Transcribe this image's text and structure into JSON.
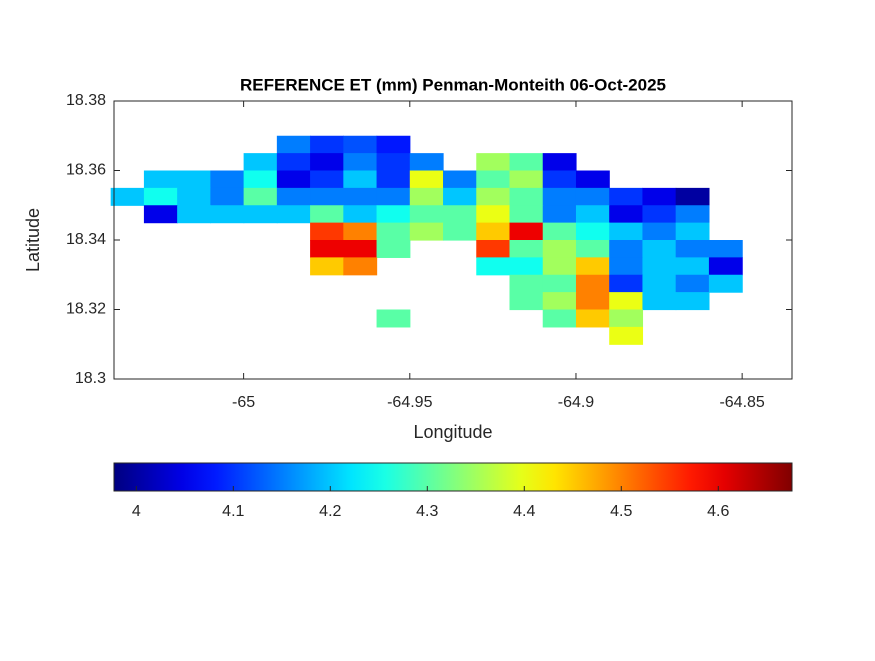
{
  "chart_data": {
    "type": "heatmap",
    "title": "REFERENCE ET (mm) Penman-Monteith 06-Oct-2025",
    "x_label": "Longitude",
    "y_label": "Latitude",
    "x": [
      -65.035,
      -65.025,
      -65.015,
      -65.005,
      -64.995,
      -64.985,
      -64.975,
      -64.965,
      -64.955,
      -64.945,
      -64.935,
      -64.925,
      -64.915,
      -64.905,
      -64.895,
      -64.885,
      -64.875,
      -64.865,
      -64.855,
      -64.845
    ],
    "y": [
      18.3675,
      18.3625,
      18.3575,
      18.3525,
      18.3475,
      18.3425,
      18.3375,
      18.3325,
      18.3275,
      18.3225,
      18.3175,
      18.3125
    ],
    "z": [
      [
        null,
        null,
        null,
        null,
        null,
        4.15,
        4.1,
        4.12,
        4.08,
        null,
        null,
        null,
        null,
        null,
        null,
        null,
        null,
        null,
        null,
        null
      ],
      [
        null,
        null,
        null,
        null,
        4.2,
        4.1,
        4.05,
        4.15,
        4.1,
        4.15,
        null,
        4.35,
        4.3,
        4.05,
        null,
        null,
        null,
        null,
        null,
        null
      ],
      [
        null,
        4.2,
        4.2,
        4.15,
        4.25,
        4.05,
        4.1,
        4.2,
        4.1,
        4.4,
        4.15,
        4.3,
        4.35,
        4.1,
        4.05,
        null,
        null,
        null,
        null,
        null
      ],
      [
        4.2,
        4.25,
        4.2,
        4.15,
        4.3,
        4.15,
        4.15,
        4.15,
        4.15,
        4.35,
        4.2,
        4.35,
        4.3,
        4.15,
        4.15,
        4.1,
        4.05,
        4.0,
        null,
        null
      ],
      [
        null,
        4.05,
        4.2,
        4.2,
        4.2,
        4.2,
        4.3,
        4.2,
        4.25,
        4.3,
        4.3,
        4.4,
        4.3,
        4.15,
        4.2,
        4.05,
        4.1,
        4.15,
        null,
        null
      ],
      [
        null,
        null,
        null,
        null,
        null,
        null,
        4.55,
        4.5,
        4.3,
        4.35,
        4.3,
        4.45,
        4.6,
        4.3,
        4.25,
        4.2,
        4.15,
        4.2,
        null,
        null
      ],
      [
        null,
        null,
        null,
        null,
        null,
        null,
        4.6,
        4.6,
        4.3,
        null,
        null,
        4.55,
        4.3,
        4.35,
        4.3,
        4.15,
        4.2,
        4.15,
        4.15,
        null
      ],
      [
        null,
        null,
        null,
        null,
        null,
        null,
        4.45,
        4.5,
        null,
        null,
        null,
        4.25,
        4.25,
        4.35,
        4.45,
        4.15,
        4.2,
        4.2,
        4.05,
        null
      ],
      [
        null,
        null,
        null,
        null,
        null,
        null,
        null,
        null,
        null,
        null,
        null,
        null,
        4.3,
        4.3,
        4.5,
        4.1,
        4.2,
        4.15,
        4.2,
        null
      ],
      [
        null,
        null,
        null,
        null,
        null,
        null,
        null,
        null,
        null,
        null,
        null,
        null,
        4.3,
        4.35,
        4.5,
        4.4,
        4.2,
        4.2,
        null,
        null
      ],
      [
        null,
        null,
        null,
        null,
        null,
        null,
        null,
        null,
        4.3,
        null,
        null,
        null,
        null,
        4.3,
        4.45,
        4.35,
        null,
        null,
        null,
        null
      ],
      [
        null,
        null,
        null,
        null,
        null,
        null,
        null,
        null,
        null,
        null,
        null,
        null,
        null,
        null,
        null,
        4.4,
        null,
        null,
        null,
        null
      ]
    ],
    "cell_width": 0.01,
    "cell_height": 0.005,
    "xlim": [
      -65.039,
      -64.835
    ],
    "xticks": [
      -65,
      -64.95,
      -64.9,
      -64.85
    ],
    "ylim": [
      18.3,
      18.38
    ],
    "yticks": [
      18.3,
      18.32,
      18.34,
      18.36,
      18.38
    ],
    "colormap": "jet",
    "clim": [
      3.977,
      4.676
    ],
    "colorbar_ticks": [
      4,
      4.1,
      4.2,
      4.3,
      4.4,
      4.5,
      4.6
    ]
  }
}
